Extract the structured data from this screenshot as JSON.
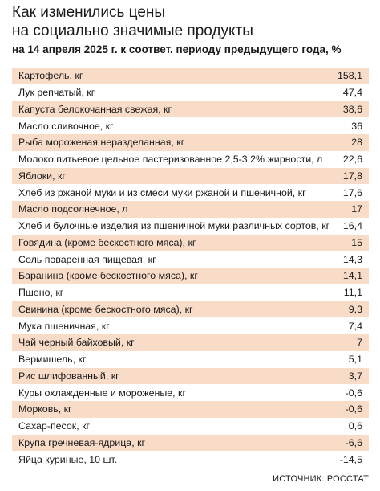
{
  "header": {
    "title_line1": "Как изменились цены",
    "title_line2": "на социально значимые продукты",
    "subtitle": "на 14 апреля 2025 г. к соответ. периоду предыдущего года, %"
  },
  "chart_data": {
    "type": "table",
    "rows": [
      {
        "product": "Картофель, кг",
        "change": "158,1"
      },
      {
        "product": "Лук репчатый, кг",
        "change": "47,4"
      },
      {
        "product": "Капуста белокочанная свежая, кг",
        "change": "38,6"
      },
      {
        "product": "Масло сливочное, кг",
        "change": "36"
      },
      {
        "product": "Рыба мороженая неразделанная, кг",
        "change": "28"
      },
      {
        "product": "Молоко питьевое цельное пастеризованное 2,5-3,2% жирности, л",
        "change": "22,6"
      },
      {
        "product": "Яблоки, кг",
        "change": "17,8"
      },
      {
        "product": "Хлеб из ржаной муки и из смеси муки ржаной и пшеничной, кг",
        "change": "17,6"
      },
      {
        "product": "Масло подсолнечное, л",
        "change": "17"
      },
      {
        "product": "Хлеб и булочные изделия из пшеничной муки различных сортов, кг",
        "change": "16,4"
      },
      {
        "product": "Говядина (кроме бескостного мяса), кг",
        "change": "15"
      },
      {
        "product": "Соль поваренная пищевая, кг",
        "change": "14,3"
      },
      {
        "product": "Баранина (кроме бескостного мяса), кг",
        "change": "14,1"
      },
      {
        "product": "Пшено, кг",
        "change": "11,1"
      },
      {
        "product": "Свинина (кроме бескостного мяса), кг",
        "change": "9,3"
      },
      {
        "product": "Мука пшеничная, кг",
        "change": "7,4"
      },
      {
        "product": "Чай черный байховый, кг",
        "change": "7"
      },
      {
        "product": "Вермишель, кг",
        "change": "5,1"
      },
      {
        "product": "Рис шлифованный, кг",
        "change": "3,7"
      },
      {
        "product": "Куры охлажденные и мороженые, кг",
        "change": "-0,6"
      },
      {
        "product": "Морковь, кг",
        "change": "-0,6"
      },
      {
        "product": "Сахар-песок, кг",
        "change": "0,6"
      },
      {
        "product": "Крупа гречневая-ядрица, кг",
        "change": "-6,6"
      },
      {
        "product": "Яйца куриные, 10 шт.",
        "change": "-14,5"
      }
    ]
  },
  "footer": {
    "source": "ИСТОЧНИК: РОССТАТ"
  },
  "colors": {
    "stripe": "#f9dcc8",
    "text": "#1a1a1a"
  }
}
